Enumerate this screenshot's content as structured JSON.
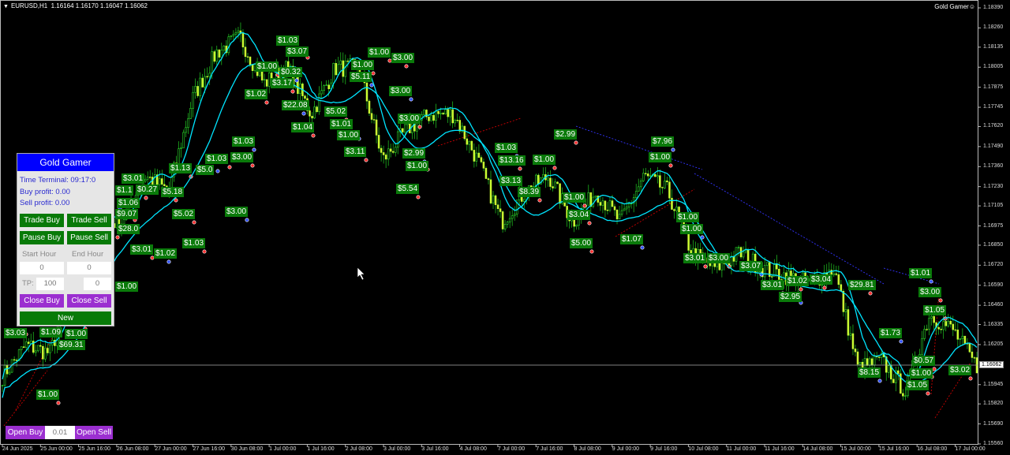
{
  "header": {
    "symbol": "EURUSD,H1",
    "ohlc": "1.16164 1.16170 1.16047 1.16062",
    "indicator": "Gold Gamer",
    "indicator_icon": "smiley-icon"
  },
  "panel": {
    "title": "Gold Gamer",
    "time_terminal": "Time Terminal: 09:17:0",
    "buy_profit": "Buy profit: 0.00",
    "sell_profit": "Sell profit: 0.00",
    "trade_buy": "Trade Buy",
    "trade_sell": "Trade Sell",
    "pause_buy": "Pause Buy",
    "pause_sell": "Pause Sell",
    "start_hour_label": "Start Hour",
    "end_hour_label": "End Hour",
    "start_hour": "0",
    "end_hour": "0",
    "tp_label": "TP:",
    "tp": "100",
    "sl": "0",
    "close_buy": "Close Buy",
    "close_sell": "Close Sell",
    "new_button": "New"
  },
  "bottom": {
    "open_buy": "Open Buy",
    "lot": "0.01",
    "open_sell": "Open Sell"
  },
  "colors": {
    "bull": "#33ff33",
    "bear": "#ccff33",
    "ma": "#00e5ff",
    "label_bg": "#0a7a0a",
    "panel_title": "#0000ff",
    "button_green": "#087a08",
    "button_purple": "#9b2fd0"
  },
  "price_axis": [
    "1.18390",
    "1.18260",
    "1.18135",
    "1.18005",
    "1.17875",
    "1.17745",
    "1.17620",
    "1.17490",
    "1.17360",
    "1.17230",
    "1.17105",
    "1.16975",
    "1.16850",
    "1.16720",
    "1.16590",
    "1.16460",
    "1.16335",
    "1.16205",
    "1.15945",
    "1.15820",
    "1.15690",
    "1.15560"
  ],
  "current_price": "1.16062",
  "time_axis": [
    "24 Jun 2025",
    "25 Jun 00:00",
    "25 Jun 16:00",
    "26 Jun 08:00",
    "27 Jun 00:00",
    "27 Jun 16:00",
    "30 Jun 08:00",
    "1 Jul 00:00",
    "1 Jul 16:00",
    "2 Jul 08:00",
    "3 Jul 00:00",
    "3 Jul 16:00",
    "4 Jul 08:00",
    "7 Jul 00:00",
    "7 Jul 16:00",
    "8 Jul 08:00",
    "9 Jul 00:00",
    "9 Jul 16:00",
    "10 Jul 08:00",
    "11 Jul 00:00",
    "11 Jul 16:00",
    "14 Jul 08:00",
    "15 Jul 00:00",
    "15 Jul 16:00",
    "16 Jul 08:00",
    "17 Jul 00:00"
  ],
  "chart_data": {
    "type": "candlestick",
    "symbol": "EURUSD",
    "timeframe": "H1",
    "ylim": [
      1.1556,
      1.1839
    ],
    "price_path": [
      1.16,
      1.162,
      1.1615,
      1.166,
      1.17,
      1.17,
      1.173,
      1.172,
      1.178,
      1.181,
      1.182,
      1.179,
      1.18,
      1.177,
      1.18,
      1.18,
      1.174,
      1.176,
      1.177,
      1.177,
      1.174,
      1.17,
      1.172,
      1.173,
      1.17,
      1.172,
      1.17,
      1.173,
      1.172,
      1.168,
      1.167,
      1.168,
      1.167,
      1.1665,
      1.166,
      1.167,
      1.1605,
      1.161,
      1.159,
      1.164,
      1.163,
      1.1606
    ],
    "profit_labels": [
      "$1.03",
      "$3.07",
      "$1.00",
      "$0.32",
      "$3.17",
      "$1.02",
      "$22.08",
      "$1.04",
      "$1.00",
      "$5.11",
      "$1.00",
      "$3.00",
      "$3.00",
      "$5.02",
      "$1.01",
      "$1.00",
      "$3.11",
      "$3.00",
      "$2.99",
      "$1.00",
      "$5.54",
      "$1.03",
      "$3.00",
      "$1.03",
      "$5.0",
      "$1.13",
      "$3.01",
      "$1.1",
      "$0.27",
      "$5.18",
      "$1.06",
      "$9.07",
      "$5.02",
      "$3.00",
      "$28.0",
      "$3.01",
      "$1.02",
      "$1.03",
      "$1.00",
      "$1.00",
      "$1.09",
      "$3.03",
      "$69.31",
      "$1.00",
      "$2.99",
      "$1.03",
      "$13.16",
      "$1.00",
      "$3.13",
      "$8.39",
      "$1.00",
      "$7.96",
      "$1.00",
      "$3.04",
      "$1.07",
      "$5.00",
      "$1.00",
      "$1.00",
      "$3.01",
      "$3.00",
      "$3.07",
      "$3.01",
      "$1.02",
      "$2.95",
      "$3.04",
      "$29.81",
      "$1.01",
      "$3.00",
      "$1.05",
      "$1.73",
      "$0.57",
      "$1.00",
      "$8.15",
      "$3.02",
      "$1.05"
    ]
  }
}
